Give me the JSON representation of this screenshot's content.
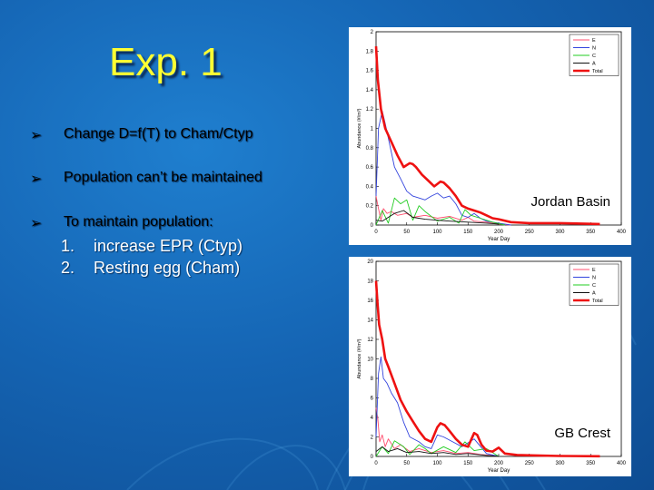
{
  "slide": {
    "title": "Exp. 1",
    "bullets": [
      "Change D=f(T) to Cham/Ctyp",
      "Population can’t be maintained",
      "To maintain population:"
    ],
    "sub_items": [
      {
        "num": "1.",
        "text": "increase EPR (Ctyp)"
      },
      {
        "num": "2.",
        "text": "Resting egg (Cham)"
      }
    ],
    "bullet_symbol": "➢"
  },
  "colors": {
    "E": "#ff4d6d",
    "N": "#3344dd",
    "C": "#22cc22",
    "A": "#111111",
    "Total": "#ee1111",
    "title": "#ffff33"
  },
  "chart_data": [
    {
      "type": "line",
      "annotation": "Jordan Basin",
      "xlabel": "Year Day",
      "ylabel": "Abundance (#/m³)",
      "xlim": [
        0,
        400
      ],
      "ylim": [
        0,
        2
      ],
      "xticks": [
        0,
        50,
        100,
        150,
        200,
        250,
        300,
        350,
        400
      ],
      "yticks": [
        0,
        0.2,
        0.4,
        0.6,
        0.8,
        1,
        1.2,
        1.4,
        1.6,
        1.8,
        2
      ],
      "legend": "top-right",
      "series": [
        {
          "name": "E",
          "x": [
            0,
            3,
            8,
            12,
            18,
            25,
            35,
            50,
            60,
            80,
            100,
            120,
            140,
            150,
            160,
            180,
            200,
            220
          ],
          "y": [
            0.3,
            0.2,
            0.05,
            0.17,
            0.12,
            0.14,
            0.1,
            0.12,
            0.08,
            0.1,
            0.07,
            0.09,
            0.05,
            0.08,
            0.04,
            0.03,
            0.01,
            0
          ]
        },
        {
          "name": "N",
          "x": [
            0,
            4,
            10,
            15,
            20,
            25,
            30,
            40,
            50,
            60,
            70,
            80,
            90,
            100,
            110,
            120,
            130,
            140,
            150,
            160,
            170,
            180,
            200,
            220
          ],
          "y": [
            0.3,
            1.0,
            1.18,
            1.05,
            0.9,
            0.75,
            0.6,
            0.48,
            0.35,
            0.3,
            0.28,
            0.26,
            0.3,
            0.33,
            0.28,
            0.3,
            0.22,
            0.1,
            0.08,
            0.12,
            0.07,
            0.04,
            0.02,
            0
          ]
        },
        {
          "name": "C",
          "x": [
            0,
            10,
            20,
            30,
            40,
            50,
            60,
            70,
            80,
            100,
            120,
            135,
            145,
            155,
            170,
            190,
            210
          ],
          "y": [
            0,
            0.15,
            0.02,
            0.28,
            0.22,
            0.26,
            0.05,
            0.2,
            0.14,
            0.04,
            0.08,
            0.02,
            0.16,
            0.1,
            0.07,
            0.03,
            0
          ]
        },
        {
          "name": "A",
          "x": [
            0,
            10,
            20,
            30,
            45,
            60,
            80,
            100,
            120,
            150,
            180,
            200
          ],
          "y": [
            0.05,
            0.04,
            0.08,
            0.12,
            0.15,
            0.08,
            0.06,
            0.05,
            0.04,
            0.03,
            0.02,
            0.01
          ]
        },
        {
          "name": "Total",
          "x": [
            0,
            3,
            8,
            15,
            25,
            35,
            45,
            55,
            60,
            65,
            75,
            85,
            95,
            105,
            110,
            120,
            130,
            140,
            150,
            160,
            170,
            180,
            190,
            200,
            220,
            250,
            300,
            365
          ],
          "y": [
            1.85,
            1.5,
            1.2,
            1.0,
            0.86,
            0.72,
            0.6,
            0.64,
            0.63,
            0.6,
            0.52,
            0.46,
            0.4,
            0.45,
            0.44,
            0.38,
            0.3,
            0.2,
            0.17,
            0.15,
            0.13,
            0.1,
            0.07,
            0.06,
            0.03,
            0.02,
            0.02,
            0.01
          ]
        }
      ]
    },
    {
      "type": "line",
      "annotation": "GB Crest",
      "xlabel": "Year Day",
      "ylabel": "Abundance (#/m³)",
      "xlim": [
        0,
        400
      ],
      "ylim": [
        0,
        20
      ],
      "xticks": [
        0,
        50,
        100,
        150,
        200,
        250,
        300,
        350,
        400
      ],
      "yticks": [
        0,
        2,
        4,
        6,
        8,
        10,
        12,
        14,
        16,
        18,
        20
      ],
      "legend": "top-right",
      "series": [
        {
          "name": "E",
          "x": [
            0,
            3,
            6,
            10,
            15,
            20,
            30,
            40,
            55,
            70,
            90,
            110,
            130,
            150,
            170,
            200
          ],
          "y": [
            5,
            3.8,
            1.5,
            2.2,
            1.0,
            1.8,
            0.8,
            1.2,
            0.5,
            0.8,
            0.4,
            0.6,
            0.3,
            0.4,
            0.2,
            0
          ]
        },
        {
          "name": "N",
          "x": [
            0,
            4,
            8,
            12,
            18,
            25,
            35,
            45,
            55,
            70,
            80,
            90,
            100,
            110,
            125,
            140,
            160,
            180,
            200
          ],
          "y": [
            2,
            8.5,
            10.2,
            8.0,
            7.5,
            6.5,
            5.5,
            3.5,
            2.0,
            1.5,
            1.0,
            0.8,
            2.2,
            2.0,
            1.5,
            1.0,
            1.8,
            0.3,
            0
          ]
        },
        {
          "name": "C",
          "x": [
            0,
            10,
            20,
            30,
            45,
            55,
            70,
            80,
            90,
            110,
            130,
            145,
            160,
            180,
            200
          ],
          "y": [
            0,
            1.0,
            0.3,
            1.6,
            1.0,
            0.2,
            1.2,
            0.8,
            0.3,
            1.0,
            0.4,
            1.5,
            0.6,
            0.8,
            0
          ]
        },
        {
          "name": "A",
          "x": [
            0,
            10,
            20,
            35,
            50,
            70,
            90,
            110,
            130,
            150,
            180,
            200
          ],
          "y": [
            0.5,
            1.0,
            0.5,
            0.8,
            0.4,
            0.5,
            0.3,
            0.4,
            0.2,
            0.3,
            0.1,
            0
          ]
        },
        {
          "name": "Total",
          "x": [
            0,
            2,
            5,
            10,
            15,
            20,
            30,
            40,
            50,
            60,
            70,
            80,
            90,
            100,
            105,
            112,
            120,
            130,
            140,
            150,
            160,
            165,
            172,
            180,
            190,
            200,
            210,
            230,
            260,
            300,
            365
          ],
          "y": [
            18,
            16,
            13.5,
            12,
            10,
            9.2,
            7.5,
            5.8,
            4.6,
            3.6,
            2.6,
            1.8,
            1.5,
            3.0,
            3.4,
            3.2,
            2.6,
            1.8,
            1.2,
            1.0,
            2.4,
            2.2,
            1.2,
            0.6,
            0.5,
            0.9,
            0.3,
            0.15,
            0.1,
            0.05,
            0.02
          ]
        }
      ]
    }
  ]
}
